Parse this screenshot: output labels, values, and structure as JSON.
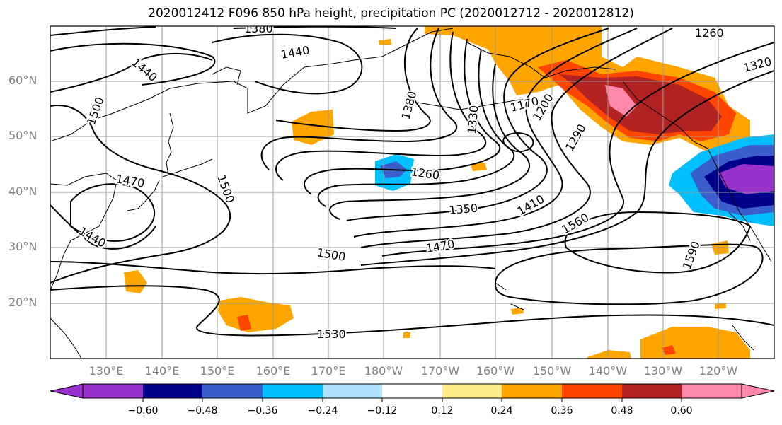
{
  "title": "2020012412 F096 850 hPa height, precipitation PC (2020012712 - 2020012812)",
  "lat_labels": [
    "60°N",
    "50°N",
    "40°N",
    "30°N",
    "20°N"
  ],
  "lon_labels": [
    "130°E",
    "140°E",
    "150°E",
    "160°E",
    "170°E",
    "180°W",
    "170°W",
    "160°W",
    "150°W",
    "140°W",
    "130°W",
    "120°W"
  ],
  "contour_labels": [
    "1380",
    "1440",
    "1440",
    "1500",
    "1470",
    "1440",
    "1500",
    "1380",
    "1330",
    "1170",
    "1200",
    "1290",
    "1260",
    "1260",
    "1320",
    "1350",
    "1410",
    "1470",
    "1560",
    "1500",
    "1590",
    "1530"
  ],
  "colorbar": {
    "colors": [
      "#9932cc",
      "#00008b",
      "#3a5fcd",
      "#00bfff",
      "#b0e2ff",
      "#ffffff",
      "#ffec8b",
      "#ffa500",
      "#ff4500",
      "#b22222",
      "#ff89ac"
    ],
    "ticks": [
      "−0.60",
      "−0.48",
      "−0.36",
      "−0.24",
      "−0.12",
      "0.12",
      "0.24",
      "0.36",
      "0.48",
      "0.60"
    ]
  }
}
